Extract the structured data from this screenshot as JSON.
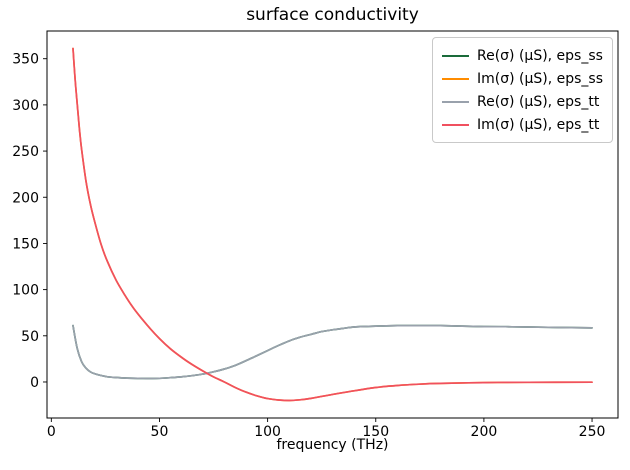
{
  "figure": {
    "background": "#ffffff",
    "text_color": "#000000",
    "spine_color": "#000000"
  },
  "chart_data": {
    "type": "line",
    "title": "surface conductivity",
    "xlabel": "frequency (THz)",
    "ylabel": "",
    "xlim": [
      -2,
      262
    ],
    "ylim": [
      -39,
      380
    ],
    "xticks": [
      0,
      50,
      100,
      150,
      200,
      250
    ],
    "yticks": [
      0,
      50,
      100,
      150,
      200,
      250,
      300,
      350
    ],
    "grid": false,
    "legend_position": "upper right",
    "series": [
      {
        "name": "Re(σ) (μS), eps_ss",
        "color": "#1a6b3a",
        "x": [
          10,
          12,
          14,
          16,
          18,
          20,
          25,
          30,
          35,
          40,
          45,
          50,
          55,
          60,
          65,
          70,
          75,
          80,
          85,
          90,
          95,
          100,
          105,
          110,
          115,
          120,
          125,
          130,
          135,
          140,
          150,
          160,
          170,
          180,
          190,
          200,
          210,
          220,
          235,
          250
        ],
        "y": [
          61,
          36,
          22,
          15,
          11,
          9,
          6,
          4.8,
          4.2,
          3.9,
          3.8,
          4,
          4.6,
          5.5,
          6.8,
          8.5,
          11,
          14,
          18,
          23,
          28.5,
          34,
          39.5,
          44.5,
          48.5,
          51.5,
          54.5,
          56.5,
          58,
          59.5,
          60.5,
          61,
          61,
          61,
          60.5,
          60,
          59.8,
          59.5,
          59,
          58.5
        ]
      },
      {
        "name": "Im(σ) (μS), eps_ss",
        "color": "#ff8c00",
        "x": [
          10,
          11,
          12,
          13,
          14,
          16,
          18,
          20,
          23,
          26,
          30,
          34,
          38,
          42,
          46,
          50,
          55,
          60,
          65,
          70,
          75,
          80,
          85,
          90,
          95,
          100,
          105,
          110,
          115,
          120,
          130,
          140,
          150,
          160,
          170,
          180,
          200,
          220,
          250
        ],
        "y": [
          361,
          328,
          300,
          274,
          252,
          218,
          193,
          174,
          149,
          130,
          110,
          94,
          80,
          68,
          57,
          47,
          36,
          27,
          19,
          12,
          5.5,
          0,
          -6,
          -11,
          -15,
          -18,
          -19.5,
          -20,
          -19.3,
          -17.8,
          -13.5,
          -9.5,
          -6,
          -3.8,
          -2.4,
          -1.5,
          -0.7,
          -0.3,
          -0.2
        ]
      },
      {
        "name": "Re(σ) (μS), eps_tt",
        "color": "#99a1ac",
        "x": [
          10,
          12,
          14,
          16,
          18,
          20,
          25,
          30,
          35,
          40,
          45,
          50,
          55,
          60,
          65,
          70,
          75,
          80,
          85,
          90,
          95,
          100,
          105,
          110,
          115,
          120,
          125,
          130,
          135,
          140,
          150,
          160,
          170,
          180,
          190,
          200,
          210,
          220,
          235,
          250
        ],
        "y": [
          61,
          36,
          22,
          15,
          11,
          9,
          6,
          4.8,
          4.2,
          3.9,
          3.8,
          4,
          4.6,
          5.5,
          6.8,
          8.5,
          11,
          14,
          18,
          23,
          28.5,
          34,
          39.5,
          44.5,
          48.5,
          51.5,
          54.5,
          56.5,
          58,
          59.5,
          60.5,
          61,
          61,
          61,
          60.5,
          60,
          59.8,
          59.5,
          59,
          58.5
        ]
      },
      {
        "name": "Im(σ) (μS), eps_tt",
        "color": "#f0505f",
        "x": [
          10,
          11,
          12,
          13,
          14,
          16,
          18,
          20,
          23,
          26,
          30,
          34,
          38,
          42,
          46,
          50,
          55,
          60,
          65,
          70,
          75,
          80,
          85,
          90,
          95,
          100,
          105,
          110,
          115,
          120,
          130,
          140,
          150,
          160,
          170,
          180,
          200,
          220,
          250
        ],
        "y": [
          361,
          328,
          300,
          274,
          252,
          218,
          193,
          174,
          149,
          130,
          110,
          94,
          80,
          68,
          57,
          47,
          36,
          27,
          19,
          12,
          5.5,
          0,
          -6,
          -11,
          -15,
          -18,
          -19.5,
          -20,
          -19.3,
          -17.8,
          -13.5,
          -9.5,
          -6,
          -3.8,
          -2.4,
          -1.5,
          -0.7,
          -0.3,
          -0.2
        ]
      }
    ]
  }
}
